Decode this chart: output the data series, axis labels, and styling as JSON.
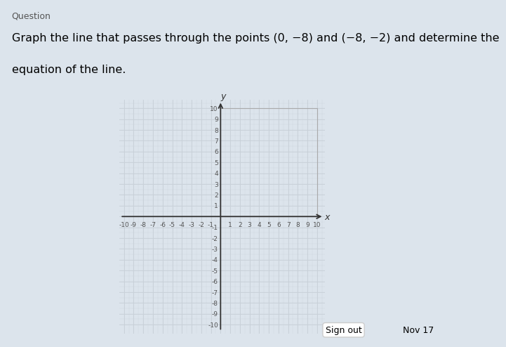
{
  "xlim": [
    -10,
    10
  ],
  "ylim": [
    -10,
    10
  ],
  "xticks_positive": [
    1,
    2,
    3,
    4,
    5,
    6,
    7,
    8,
    9,
    10
  ],
  "xticks_negative": [
    -10,
    -9,
    -8,
    -7,
    -6,
    -5,
    -4,
    -3,
    -2,
    -1
  ],
  "yticks_positive": [
    1,
    2,
    3,
    4,
    5,
    6,
    7,
    8,
    9,
    10
  ],
  "yticks_negative": [
    -10,
    -9,
    -8,
    -7,
    -6,
    -5,
    -4,
    -3,
    -2,
    -1
  ],
  "grid_color": "#c8d0d8",
  "axis_color": "#333333",
  "background_color": "#ffffff",
  "page_bg": "#dce4ec",
  "xlabel": "x",
  "ylabel": "y",
  "tick_fontsize": 6.5,
  "axis_label_fontsize": 9,
  "question_line1": "Graph the line that passes through the points (0, −8) and (−8, −2) and determine the",
  "question_line2": "equation of the line.",
  "question_fontsize": 11.5,
  "header_text": "Question",
  "footer_text": "Sign out",
  "footer_date": "Nov 17"
}
